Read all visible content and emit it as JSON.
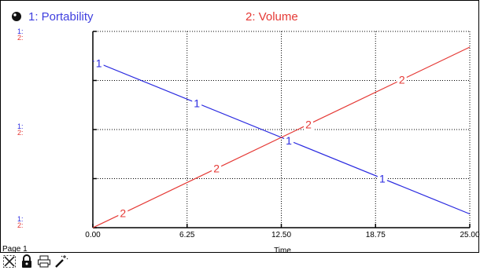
{
  "page_label": "Page 1",
  "toolbar": {
    "icons": [
      "crossed-graph-icon",
      "lock-icon",
      "print-icon",
      "magic-wand-icon"
    ]
  },
  "y_axis_labels": {
    "series1": "1:",
    "series2": "2:"
  },
  "colors": {
    "series1": "#2a2ae0",
    "series2": "#e53935",
    "grid": "#000000"
  },
  "chart_data": {
    "type": "line",
    "title": "",
    "xlabel": "Time",
    "ylabel": "",
    "xlim": [
      0,
      25
    ],
    "x_ticks": [
      "0.00",
      "6.25",
      "12.50",
      "18.75",
      "25.00"
    ],
    "grid": true,
    "legend": "top",
    "series": [
      {
        "name": "1: Portability",
        "marker_label": "1",
        "x": [
          0,
          25
        ],
        "y_norm": [
          0.85,
          0.07
        ],
        "markers_at": [
          0.4,
          6.9,
          13.0,
          19.2
        ]
      },
      {
        "name": "2: Volume",
        "marker_label": "2",
        "x": [
          0,
          25
        ],
        "y_norm": [
          0.0,
          0.92
        ],
        "markers_at": [
          2.0,
          8.2,
          14.3,
          20.5
        ]
      }
    ]
  }
}
